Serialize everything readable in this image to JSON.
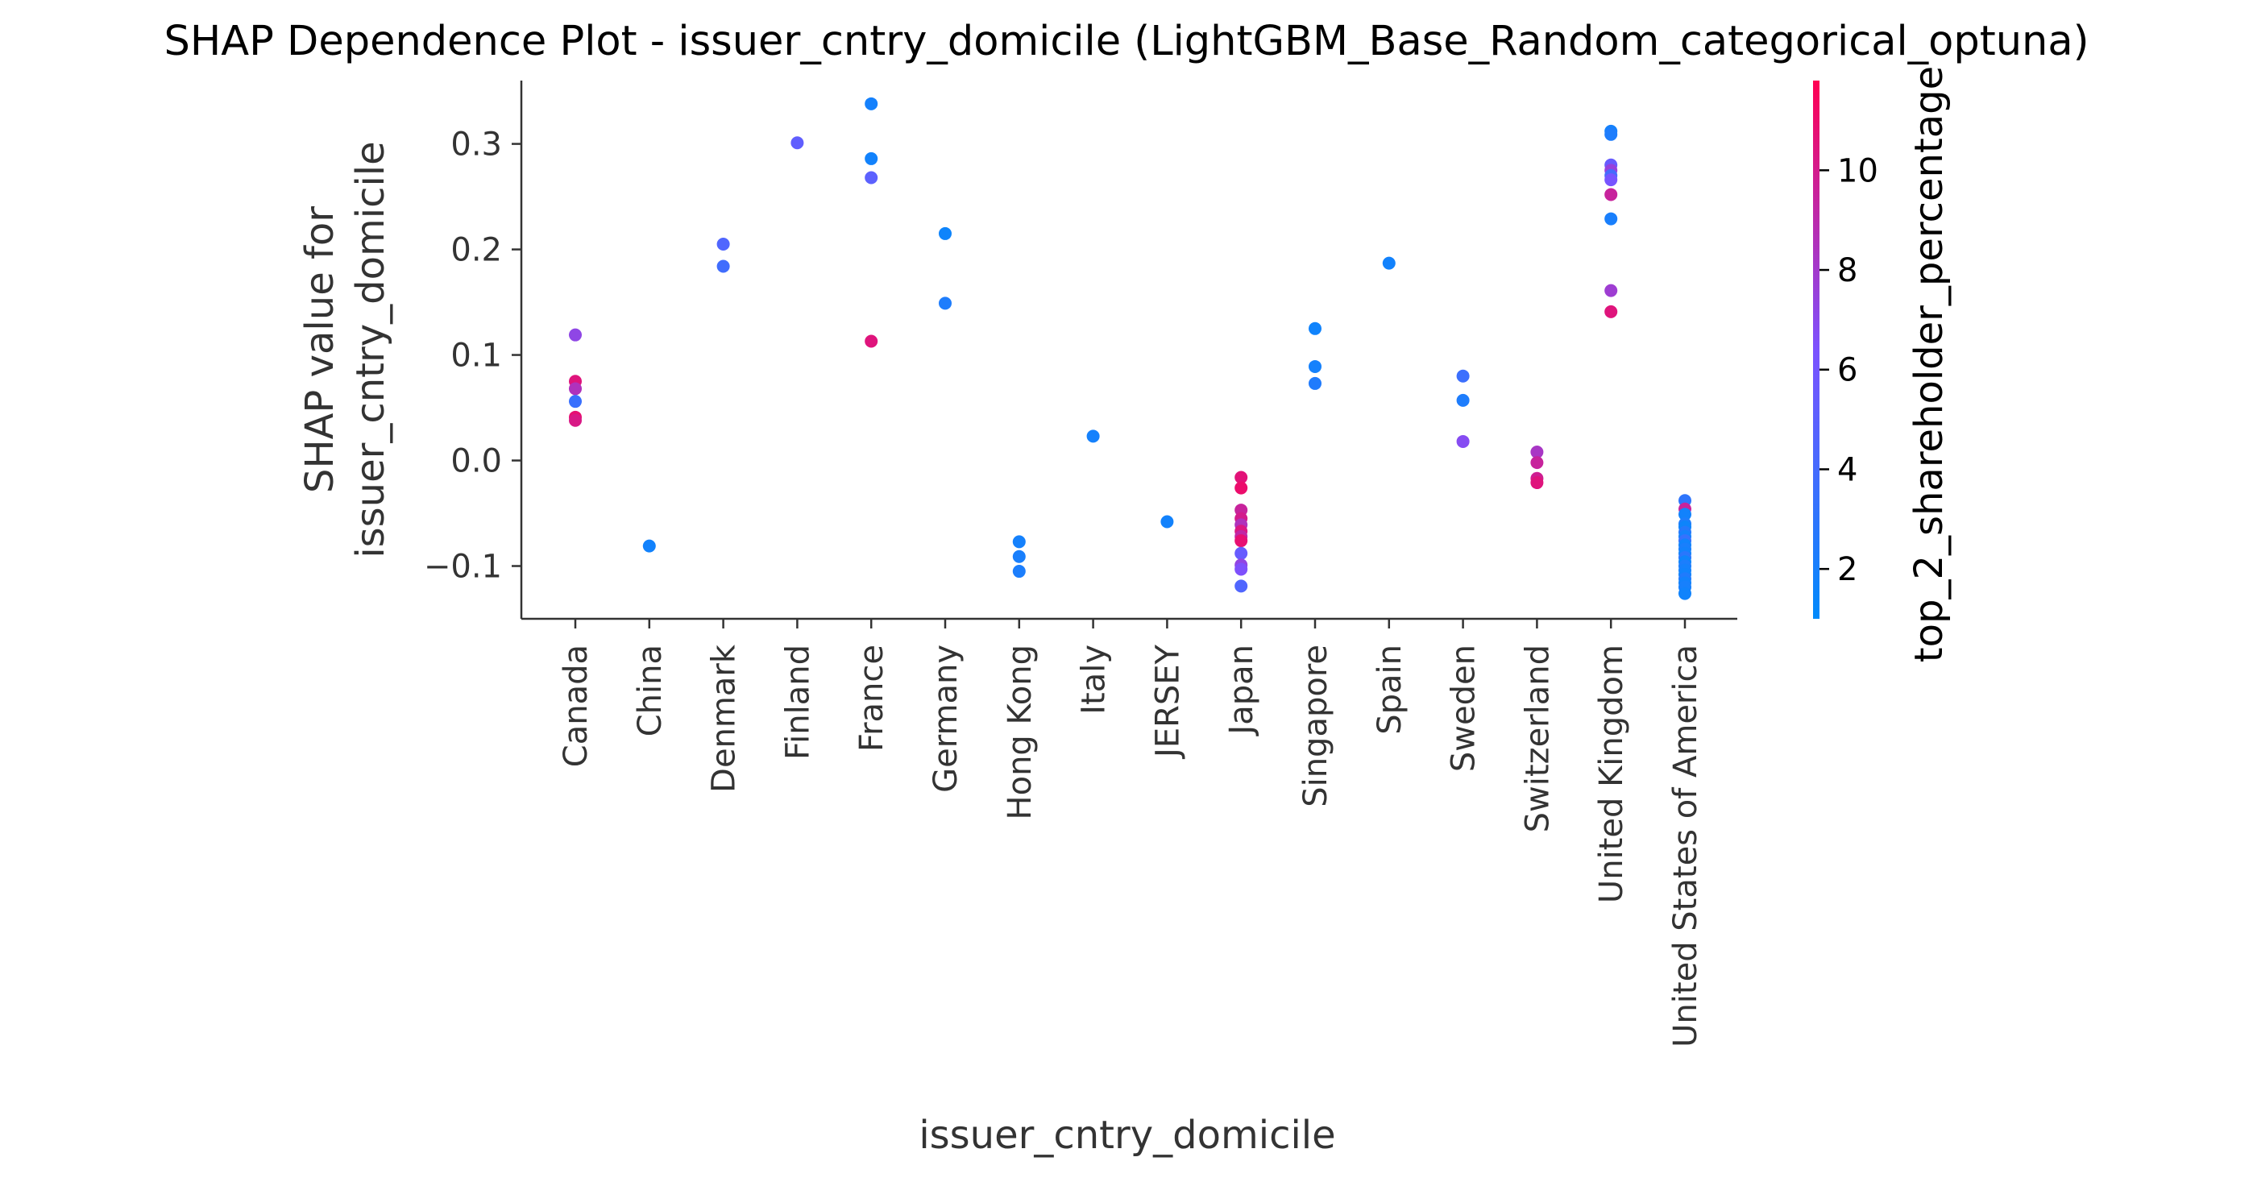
{
  "chart_data": {
    "type": "scatter",
    "title": "SHAP Dependence Plot - issuer_cntry_domicile (LightGBM_Base_Random_categorical_optuna)",
    "xlabel": "issuer_cntry_domicile",
    "ylabel_lines": [
      "SHAP value for",
      "issuer_cntry_domicile"
    ],
    "categories": [
      "Canada",
      "China",
      "Denmark",
      "Finland",
      "France",
      "Germany",
      "Hong Kong",
      "Italy",
      "JERSEY",
      "Japan",
      "Singapore",
      "Spain",
      "Sweden",
      "Switzerland",
      "United Kingdom",
      "United States of America"
    ],
    "ylim": [
      -0.15,
      0.36
    ],
    "yticks": [
      0.3,
      0.2,
      0.1,
      0.0,
      -0.1
    ],
    "ytick_labels": [
      "0.3",
      "0.2",
      "0.1",
      "0.0",
      "−0.1"
    ],
    "colorbar": {
      "label": "top_2_shareholder_percentage",
      "range": [
        1.0,
        11.8
      ],
      "ticks": [
        2,
        4,
        6,
        8,
        10
      ],
      "tick_labels": [
        "2",
        "4",
        "6",
        "8",
        "10"
      ],
      "color_low": "#008afb",
      "color_mid": "#7c52ff",
      "color_high": "#ff0052"
    },
    "points": [
      {
        "category": "Canada",
        "y": 0.119,
        "c": 7.2
      },
      {
        "category": "Canada",
        "y": 0.075,
        "c": 10.5
      },
      {
        "category": "Canada",
        "y": 0.068,
        "c": 8.5
      },
      {
        "category": "Canada",
        "y": 0.056,
        "c": 3.5
      },
      {
        "category": "Canada",
        "y": 0.041,
        "c": 10.8
      },
      {
        "category": "Canada",
        "y": 0.038,
        "c": 10.2
      },
      {
        "category": "China",
        "y": -0.081,
        "c": 1.8
      },
      {
        "category": "Denmark",
        "y": 0.205,
        "c": 4.5
      },
      {
        "category": "Denmark",
        "y": 0.184,
        "c": 3.8
      },
      {
        "category": "Finland",
        "y": 0.301,
        "c": 5.2
      },
      {
        "category": "France",
        "y": 0.338,
        "c": 1.9
      },
      {
        "category": "France",
        "y": 0.286,
        "c": 1.8
      },
      {
        "category": "France",
        "y": 0.268,
        "c": 5.0
      },
      {
        "category": "France",
        "y": 0.113,
        "c": 10.5
      },
      {
        "category": "Germany",
        "y": 0.215,
        "c": 1.6
      },
      {
        "category": "Germany",
        "y": 0.149,
        "c": 2.3
      },
      {
        "category": "Hong Kong",
        "y": -0.077,
        "c": 1.9
      },
      {
        "category": "Hong Kong",
        "y": -0.091,
        "c": 2.1
      },
      {
        "category": "Hong Kong",
        "y": -0.105,
        "c": 2.2
      },
      {
        "category": "Italy",
        "y": 0.023,
        "c": 1.9
      },
      {
        "category": "JERSEY",
        "y": -0.058,
        "c": 1.8
      },
      {
        "category": "Japan",
        "y": -0.016,
        "c": 10.6
      },
      {
        "category": "Japan",
        "y": -0.026,
        "c": 11.0
      },
      {
        "category": "Japan",
        "y": -0.047,
        "c": 9.5
      },
      {
        "category": "Japan",
        "y": -0.055,
        "c": 10.0
      },
      {
        "category": "Japan",
        "y": -0.061,
        "c": 8.5
      },
      {
        "category": "Japan",
        "y": -0.067,
        "c": 10.3
      },
      {
        "category": "Japan",
        "y": -0.072,
        "c": 9.2
      },
      {
        "category": "Japan",
        "y": -0.076,
        "c": 10.8
      },
      {
        "category": "Japan",
        "y": -0.088,
        "c": 5.5
      },
      {
        "category": "Japan",
        "y": -0.099,
        "c": 7.3
      },
      {
        "category": "Japan",
        "y": -0.103,
        "c": 6.5
      },
      {
        "category": "Japan",
        "y": -0.119,
        "c": 4.5
      },
      {
        "category": "Singapore",
        "y": 0.125,
        "c": 1.7
      },
      {
        "category": "Singapore",
        "y": 0.089,
        "c": 1.9
      },
      {
        "category": "Singapore",
        "y": 0.073,
        "c": 2.4
      },
      {
        "category": "Spain",
        "y": 0.187,
        "c": 1.8
      },
      {
        "category": "Sweden",
        "y": 0.08,
        "c": 3.6
      },
      {
        "category": "Sweden",
        "y": 0.057,
        "c": 2.3
      },
      {
        "category": "Sweden",
        "y": 0.018,
        "c": 6.8
      },
      {
        "category": "Switzerland",
        "y": 0.008,
        "c": 8.2
      },
      {
        "category": "Switzerland",
        "y": -0.002,
        "c": 9.5
      },
      {
        "category": "Switzerland",
        "y": -0.017,
        "c": 9.8
      },
      {
        "category": "Switzerland",
        "y": -0.021,
        "c": 10.5
      },
      {
        "category": "United Kingdom",
        "y": 0.312,
        "c": 1.9
      },
      {
        "category": "United Kingdom",
        "y": 0.309,
        "c": 2.3
      },
      {
        "category": "United Kingdom",
        "y": 0.28,
        "c": 5.5
      },
      {
        "category": "United Kingdom",
        "y": 0.275,
        "c": 7.5
      },
      {
        "category": "United Kingdom",
        "y": 0.27,
        "c": 4.0
      },
      {
        "category": "United Kingdom",
        "y": 0.266,
        "c": 6.2
      },
      {
        "category": "United Kingdom",
        "y": 0.252,
        "c": 9.5
      },
      {
        "category": "United Kingdom",
        "y": 0.229,
        "c": 2.1
      },
      {
        "category": "United Kingdom",
        "y": 0.161,
        "c": 7.8
      },
      {
        "category": "United Kingdom",
        "y": 0.141,
        "c": 10.5
      },
      {
        "category": "United States of America",
        "y": -0.038,
        "c": 3.0
      },
      {
        "category": "United States of America",
        "y": -0.046,
        "c": 9.5
      },
      {
        "category": "United States of America",
        "y": -0.051,
        "c": 1.8
      },
      {
        "category": "United States of America",
        "y": -0.06,
        "c": 2.3
      },
      {
        "category": "United States of America",
        "y": -0.063,
        "c": 1.6
      },
      {
        "category": "United States of America",
        "y": -0.068,
        "c": 2.6
      },
      {
        "category": "United States of America",
        "y": -0.072,
        "c": 1.9
      },
      {
        "category": "United States of America",
        "y": -0.076,
        "c": 3.3
      },
      {
        "category": "United States of America",
        "y": -0.08,
        "c": 1.7
      },
      {
        "category": "United States of America",
        "y": -0.084,
        "c": 2.1
      },
      {
        "category": "United States of America",
        "y": -0.088,
        "c": 1.8
      },
      {
        "category": "United States of America",
        "y": -0.092,
        "c": 2.8
      },
      {
        "category": "United States of America",
        "y": -0.096,
        "c": 1.6
      },
      {
        "category": "United States of America",
        "y": -0.1,
        "c": 2.2
      },
      {
        "category": "United States of America",
        "y": -0.104,
        "c": 1.9
      },
      {
        "category": "United States of America",
        "y": -0.108,
        "c": 1.7
      },
      {
        "category": "United States of America",
        "y": -0.112,
        "c": 2.4
      },
      {
        "category": "United States of America",
        "y": -0.116,
        "c": 1.8
      },
      {
        "category": "United States of America",
        "y": -0.12,
        "c": 2.0
      },
      {
        "category": "United States of America",
        "y": -0.126,
        "c": 1.7
      }
    ]
  }
}
